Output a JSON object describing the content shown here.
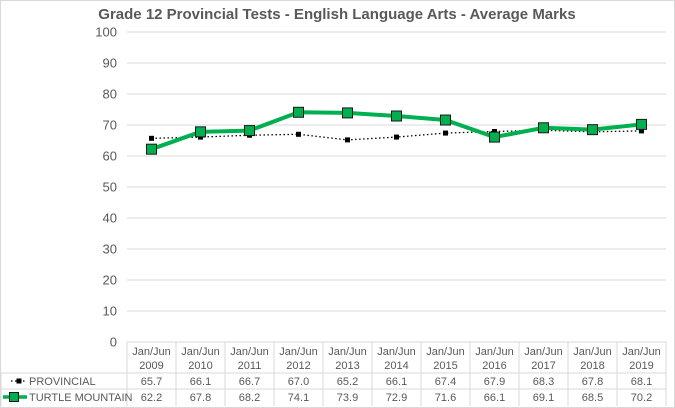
{
  "chart_data": {
    "type": "line",
    "title": "Grade 12 Provincial Tests - English Language Arts - Average Marks",
    "xlabel": "",
    "ylabel": "",
    "ylim": [
      0,
      100
    ],
    "yticks": [
      0,
      10,
      20,
      30,
      40,
      50,
      60,
      70,
      80,
      90,
      100
    ],
    "grid": true,
    "legend_placement": "in data table",
    "categories": [
      [
        "Jan/Jun",
        "2009"
      ],
      [
        "Jan/Jun",
        "2010"
      ],
      [
        "Jan/Jun",
        "2011"
      ],
      [
        "Jan/Jun",
        "2012"
      ],
      [
        "Jan/Jun",
        "2013"
      ],
      [
        "Jan/Jun",
        "2014"
      ],
      [
        "Jan/Jun",
        "2015"
      ],
      [
        "Jan/Jun",
        "2016"
      ],
      [
        "Jan/Jun",
        "2017"
      ],
      [
        "Jan/Jun",
        "2018"
      ],
      [
        "Jan/Jun",
        "2019"
      ]
    ],
    "series": [
      {
        "name": "PROVINCIAL",
        "color": "#000000",
        "values": [
          65.7,
          66.1,
          66.7,
          67.0,
          65.2,
          66.1,
          67.4,
          67.9,
          68.3,
          67.8,
          68.1
        ],
        "labels": [
          "65.7",
          "66.1",
          "66.7",
          "67.0",
          "65.2",
          "66.1",
          "67.4",
          "67.9",
          "68.3",
          "67.8",
          "68.1"
        ]
      },
      {
        "name": "TURTLE MOUNTAIN",
        "color": "#00b050",
        "values": [
          62.2,
          67.8,
          68.2,
          74.1,
          73.9,
          72.9,
          71.6,
          66.1,
          69.1,
          68.5,
          70.2
        ],
        "labels": [
          "62.2",
          "67.8",
          "68.2",
          "74.1",
          "73.9",
          "72.9",
          "71.6",
          "66.1",
          "69.1",
          "68.5",
          "70.2"
        ]
      }
    ]
  }
}
